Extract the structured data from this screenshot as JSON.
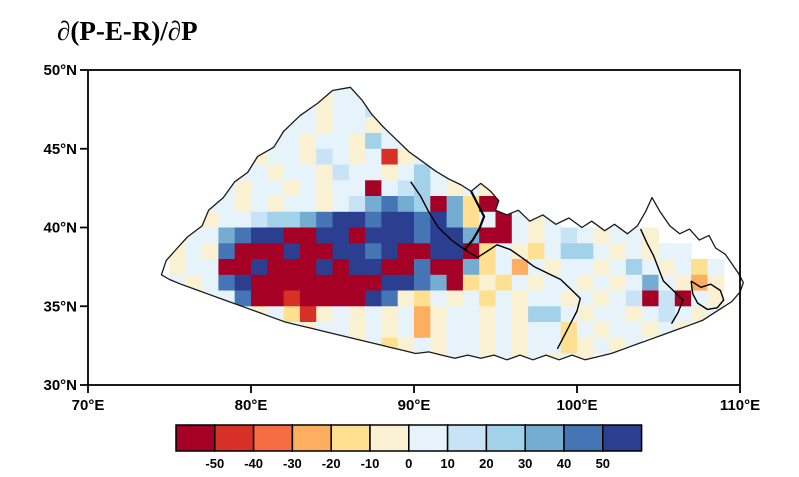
{
  "chart_data": {
    "type": "heatmap",
    "title": "∂(P-E-R)/∂P",
    "x_axis": {
      "ticks": [
        70,
        80,
        90,
        100,
        110
      ],
      "tick_labels": [
        "70°E",
        "80°E",
        "90°E",
        "100°E",
        "110°E"
      ],
      "range": [
        70,
        110
      ]
    },
    "y_axis": {
      "ticks": [
        50,
        45,
        40,
        35,
        30
      ],
      "tick_labels": [
        "50°N",
        "45°N",
        "40°N",
        "35°N",
        "30°N"
      ],
      "range": [
        30,
        50
      ]
    },
    "colorbar": {
      "orientation": "horizontal",
      "labels": [
        "-50",
        "-40",
        "-30",
        "-20",
        "-10",
        "0",
        "10",
        "20",
        "30",
        "40",
        "50"
      ],
      "colors": [
        "#a50026",
        "#d73027",
        "#f46d43",
        "#fdae61",
        "#fee090",
        "#faf0d2",
        "#e6f3fb",
        "#c8e3f5",
        "#a2d1ea",
        "#74add1",
        "#4575b4",
        "#2c3e8f"
      ]
    },
    "cell_colors": {
      "0": "#a50026",
      "1": "#d73027",
      "2": "#f46d43",
      "3": "#fdae61",
      "4": "#fee090",
      "5": "#faf0d2",
      "6": "#e6f3fb",
      "7": "#c8e3f5",
      "8": "#a2d1ea",
      "9": "#74add1",
      "a": "#4575b4",
      "b": "#2c3e8f"
    },
    "value_bins": {
      "0": "< -50",
      "1": "-50 to -40",
      "2": "-40 to -30",
      "3": "-30 to -20",
      "4": "-20 to -10",
      "5": "-10 to 0",
      "6": "0 to 10",
      "7": "10 to 20",
      "8": "20 to 30",
      "9": "30 to 40",
      "a": "40 to 50",
      "b": "> 50"
    },
    "grid": {
      "lon_start": 75,
      "lat_start": 49,
      "dlon": 1,
      "dlat": 1,
      "rows": [
        "........65665......................",
        ".......66566756....................",
        "......5665665675...................",
        ".....5665665866566.................",
        "....65665765615665.................",
        "...5665665766568656................",
        "..5656656566067865656..............",
        ".566565665679a98094004.............",
        "565667889abbabbab9460656...........",
        "5669abb00bb0bbbabb900656765665.....",
        "565a000b00bbab00bb04654688656566...",
        "56600b000b0bb00a009463656656865646.",
        "656ab00000000bba904546566565696535.",
        ".566a0010000ba54656465665656707065.",
        "..65656415656563566565886566567656.",
        "...566565665656356656566465665656..",
        "........656564565665656645656......",
        "..............565665656565........."
      ]
    },
    "region_outline": [
      [
        74.5,
        37.0
      ],
      [
        74.8,
        37.9
      ],
      [
        75.4,
        38.6
      ],
      [
        76.1,
        39.4
      ],
      [
        77.0,
        40.1
      ],
      [
        77.4,
        41.1
      ],
      [
        78.3,
        41.9
      ],
      [
        79.0,
        42.9
      ],
      [
        79.8,
        43.5
      ],
      [
        80.4,
        44.5
      ],
      [
        81.4,
        45.1
      ],
      [
        82.0,
        46.1
      ],
      [
        83.0,
        47.1
      ],
      [
        84.1,
        47.9
      ],
      [
        85.0,
        48.7
      ],
      [
        86.1,
        48.9
      ],
      [
        86.8,
        48.1
      ],
      [
        87.4,
        47.2
      ],
      [
        88.1,
        46.4
      ],
      [
        88.9,
        45.6
      ],
      [
        89.7,
        44.8
      ],
      [
        90.5,
        44.2
      ],
      [
        91.3,
        43.6
      ],
      [
        92.1,
        43.1
      ],
      [
        92.9,
        42.7
      ],
      [
        93.5,
        42.3
      ],
      [
        94.1,
        42.8
      ],
      [
        94.7,
        42.3
      ],
      [
        95.2,
        41.7
      ],
      [
        95.0,
        41.1
      ],
      [
        95.7,
        40.8
      ],
      [
        96.4,
        41.1
      ],
      [
        97.1,
        40.4
      ],
      [
        97.9,
        40.8
      ],
      [
        98.7,
        40.2
      ],
      [
        99.5,
        40.6
      ],
      [
        100.3,
        40.0
      ],
      [
        100.9,
        40.4
      ],
      [
        101.7,
        39.8
      ],
      [
        102.3,
        40.2
      ],
      [
        103.1,
        39.6
      ],
      [
        103.7,
        40.1
      ],
      [
        104.2,
        41.0
      ],
      [
        104.6,
        41.9
      ],
      [
        105.1,
        41.0
      ],
      [
        105.7,
        40.1
      ],
      [
        106.3,
        39.6
      ],
      [
        106.9,
        39.9
      ],
      [
        107.5,
        39.2
      ],
      [
        108.1,
        39.5
      ],
      [
        108.5,
        38.7
      ],
      [
        109.1,
        38.3
      ],
      [
        109.5,
        37.7
      ],
      [
        109.9,
        37.1
      ],
      [
        110.2,
        36.5
      ],
      [
        110.0,
        35.9
      ],
      [
        109.5,
        35.3
      ],
      [
        108.9,
        34.9
      ],
      [
        108.3,
        34.5
      ],
      [
        107.7,
        34.1
      ],
      [
        106.9,
        33.8
      ],
      [
        106.1,
        33.5
      ],
      [
        105.3,
        33.2
      ],
      [
        104.5,
        32.9
      ],
      [
        103.7,
        32.6
      ],
      [
        102.9,
        32.3
      ],
      [
        102.1,
        32.0
      ],
      [
        101.3,
        31.8
      ],
      [
        100.5,
        31.6
      ],
      [
        99.7,
        31.9
      ],
      [
        98.9,
        31.6
      ],
      [
        98.1,
        31.9
      ],
      [
        97.3,
        31.6
      ],
      [
        96.5,
        31.9
      ],
      [
        95.7,
        31.6
      ],
      [
        94.9,
        31.9
      ],
      [
        94.1,
        31.7
      ],
      [
        93.3,
        31.9
      ],
      [
        92.5,
        31.7
      ],
      [
        91.7,
        31.9
      ],
      [
        90.9,
        32.1
      ],
      [
        90.1,
        32.0
      ],
      [
        89.3,
        32.2
      ],
      [
        88.5,
        32.4
      ],
      [
        87.7,
        32.6
      ],
      [
        86.9,
        32.8
      ],
      [
        86.1,
        33.0
      ],
      [
        85.3,
        33.2
      ],
      [
        84.5,
        33.4
      ],
      [
        83.7,
        33.6
      ],
      [
        82.9,
        33.8
      ],
      [
        82.1,
        34.0
      ],
      [
        81.3,
        34.3
      ],
      [
        80.5,
        34.6
      ],
      [
        79.7,
        34.9
      ],
      [
        78.9,
        35.2
      ],
      [
        78.1,
        35.5
      ],
      [
        77.3,
        35.8
      ],
      [
        76.5,
        36.1
      ],
      [
        75.7,
        36.4
      ],
      [
        75.0,
        36.7
      ]
    ],
    "internal_boundaries": [
      [
        [
          89.8,
          42.9
        ],
        [
          90.4,
          42.0
        ],
        [
          90.9,
          41.0
        ],
        [
          91.5,
          40.0
        ],
        [
          92.3,
          39.2
        ],
        [
          93.1,
          38.6
        ],
        [
          93.9,
          38.1
        ],
        [
          94.5,
          38.5
        ],
        [
          95.1,
          38.9
        ],
        [
          95.9,
          38.6
        ],
        [
          96.6,
          38.1
        ]
      ],
      [
        [
          96.6,
          38.1
        ],
        [
          97.4,
          37.5
        ],
        [
          98.2,
          37.1
        ],
        [
          99.0,
          36.7
        ],
        [
          99.6,
          36.1
        ],
        [
          100.2,
          35.5
        ],
        [
          100.0,
          34.7
        ],
        [
          99.6,
          33.9
        ],
        [
          99.2,
          33.1
        ],
        [
          98.8,
          32.3
        ]
      ],
      [
        [
          103.9,
          39.9
        ],
        [
          104.3,
          39.0
        ],
        [
          104.7,
          38.2
        ],
        [
          105.0,
          37.4
        ],
        [
          105.3,
          36.6
        ],
        [
          105.9,
          36.0
        ],
        [
          106.5,
          35.4
        ],
        [
          106.2,
          34.6
        ],
        [
          105.8,
          33.9
        ]
      ],
      [
        [
          107.0,
          36.6
        ],
        [
          107.6,
          36.2
        ],
        [
          108.2,
          36.4
        ],
        [
          108.8,
          36.0
        ],
        [
          109.0,
          35.4
        ],
        [
          108.6,
          34.9
        ],
        [
          108.0,
          34.8
        ],
        [
          107.4,
          35.2
        ],
        [
          107.1,
          35.8
        ],
        [
          107.0,
          36.6
        ]
      ],
      [
        [
          93.5,
          42.3
        ],
        [
          93.9,
          41.5
        ],
        [
          94.3,
          40.7
        ],
        [
          94.0,
          39.9
        ],
        [
          93.6,
          39.2
        ],
        [
          93.1,
          38.6
        ]
      ]
    ]
  }
}
